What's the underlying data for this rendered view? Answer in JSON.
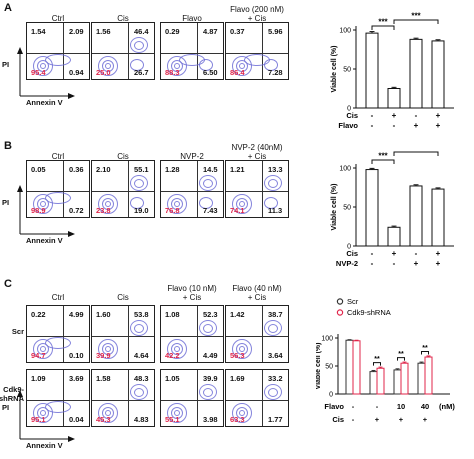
{
  "panels": [
    {
      "letter": "A",
      "columns": [
        {
          "title": "Ctrl",
          "ul": "1.54",
          "ur": "2.09",
          "ll": "95.4",
          "lr": "0.94"
        },
        {
          "title": "Cis",
          "ul": "1.56",
          "ur": "46.4",
          "ll": "25.0",
          "lr": "26.7"
        },
        {
          "title": "Flavo",
          "ul": "0.29",
          "ur": "4.87",
          "ll": "88.3",
          "lr": "6.50"
        },
        {
          "title": "Flavo (200 nM)\n+ Cis",
          "ul": "0.37",
          "ur": "5.96",
          "ll": "86.4",
          "lr": "7.28"
        }
      ],
      "ylabel": "PI",
      "xlabel": "Annexin V"
    },
    {
      "letter": "B",
      "columns": [
        {
          "title": "Ctrl",
          "ul": "0.05",
          "ur": "0.36",
          "ll": "98.9",
          "lr": "0.72"
        },
        {
          "title": "Cis",
          "ul": "2.10",
          "ur": "55.1",
          "ll": "23.8",
          "lr": "19.0"
        },
        {
          "title": "NVP-2",
          "ul": "1.28",
          "ur": "14.5",
          "ll": "76.8",
          "lr": "7.43"
        },
        {
          "title": "NVP-2 (40nM)\n+ Cis",
          "ul": "1.21",
          "ur": "13.3",
          "ll": "74.1",
          "lr": "11.3"
        }
      ],
      "ylabel": "PI",
      "xlabel": "Annexin V"
    },
    {
      "letter": "C",
      "columns": [
        {
          "title": "Ctrl"
        },
        {
          "title": "Cis"
        },
        {
          "title": "Flavo (10 nM)\n+ Cis"
        },
        {
          "title": "Flavo (40 nM)\n+ Cis"
        }
      ],
      "rows": [
        {
          "label": "Scr",
          "cells": [
            {
              "ul": "0.22",
              "ur": "4.99",
              "ll": "94.7",
              "lr": "0.10"
            },
            {
              "ul": "1.60",
              "ur": "53.8",
              "ll": "39.9",
              "lr": "4.64"
            },
            {
              "ul": "1.08",
              "ur": "52.3",
              "ll": "42.2",
              "lr": "4.49"
            },
            {
              "ul": "1.42",
              "ur": "38.7",
              "ll": "56.3",
              "lr": "3.64"
            }
          ]
        },
        {
          "label": "Cdk9-\nshRNA",
          "cells": [
            {
              "ul": "1.09",
              "ur": "3.69",
              "ll": "95.1",
              "lr": "0.04"
            },
            {
              "ul": "1.58",
              "ur": "48.3",
              "ll": "45.3",
              "lr": "4.83"
            },
            {
              "ul": "1.05",
              "ur": "39.9",
              "ll": "55.1",
              "lr": "3.98"
            },
            {
              "ul": "1.69",
              "ur": "33.2",
              "ll": "63.3",
              "lr": "1.77"
            }
          ]
        }
      ],
      "ylabel": "PI",
      "xlabel": "Annexin V"
    }
  ],
  "chart_data": [
    {
      "type": "bar",
      "panel": "A",
      "ylabel": "Viable cell (%)",
      "ylim": [
        0,
        100
      ],
      "yticks": [
        "0",
        "50",
        "100"
      ],
      "categories": [
        "1",
        "2",
        "3",
        "4"
      ],
      "values": [
        96,
        25,
        88,
        86
      ],
      "errors": [
        2,
        1.5,
        1.5,
        1.5
      ],
      "bar_color": "#ffffff",
      "treatment_rows": [
        {
          "label": "Cis",
          "marks": [
            "-",
            "+",
            "-",
            "+"
          ]
        },
        {
          "label": "Flavo",
          "marks": [
            "-",
            "-",
            "+",
            "+"
          ]
        }
      ],
      "significance": [
        {
          "from": 0,
          "to": 1,
          "label": "***"
        },
        {
          "from": 1,
          "to": 3,
          "label": "***"
        }
      ]
    },
    {
      "type": "bar",
      "panel": "B",
      "ylabel": "Viable cell (%)",
      "ylim": [
        0,
        100
      ],
      "yticks": [
        "0",
        "50",
        "100"
      ],
      "categories": [
        "1",
        "2",
        "3",
        "4"
      ],
      "values": [
        98,
        24,
        77,
        73
      ],
      "errors": [
        1.5,
        1.5,
        1.5,
        1.5
      ],
      "bar_color": "#ffffff",
      "treatment_rows": [
        {
          "label": "Cis",
          "marks": [
            "-",
            "+",
            "-",
            "+"
          ]
        },
        {
          "label": "NVP-2",
          "marks": [
            "-",
            "-",
            "+",
            "+"
          ]
        }
      ],
      "significance": [
        {
          "from": 0,
          "to": 1,
          "label": "***"
        },
        {
          "from": 1,
          "to": 3,
          "label": "***"
        }
      ]
    },
    {
      "type": "bar",
      "panel": "C",
      "ylabel": "Viable cell (%)",
      "ylim": [
        0,
        100
      ],
      "yticks": [
        "0",
        "50",
        "100"
      ],
      "categories": [
        "1",
        "2",
        "3",
        "4"
      ],
      "series": [
        {
          "name": "Scr",
          "values": [
            96,
            40,
            43,
            55
          ],
          "errors": [
            1,
            2,
            2,
            2
          ],
          "color": "#333333"
        },
        {
          "name": "Cdk9-shRNA",
          "values": [
            95,
            46,
            55,
            66
          ],
          "errors": [
            1,
            2,
            2,
            2
          ],
          "color": "#e0254a"
        }
      ],
      "treatment_rows": [
        {
          "label": "Flavo",
          "marks": [
            "-",
            "-",
            "10",
            "40"
          ],
          "unit": "(nM)"
        },
        {
          "label": "Cis",
          "marks": [
            "-",
            "+",
            "+",
            "+"
          ]
        }
      ],
      "significance": [
        {
          "group": 1,
          "label": "**"
        },
        {
          "group": 2,
          "label": "**"
        },
        {
          "group": 3,
          "label": "**"
        }
      ]
    }
  ]
}
